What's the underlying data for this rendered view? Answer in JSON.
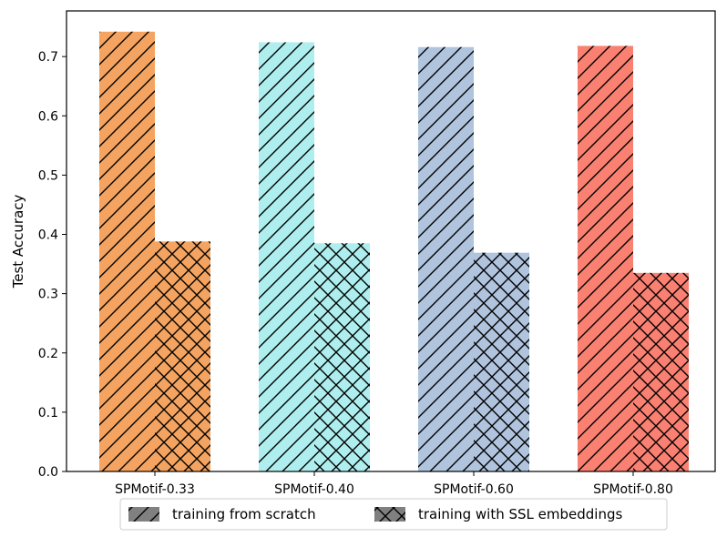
{
  "chart_data": {
    "type": "bar",
    "categories": [
      "SPMotif-0.33",
      "SPMotif-0.40",
      "SPMotif-0.60",
      "SPMotif-0.80"
    ],
    "colors": [
      "#f4a460",
      "#afeeee",
      "#b0c4de",
      "#fa8072"
    ],
    "series": [
      {
        "name": "training from scratch",
        "hatch": "diagonal",
        "values": [
          0.742,
          0.724,
          0.716,
          0.718
        ]
      },
      {
        "name": "training with SSL embeddings",
        "hatch": "crosshatch",
        "values": [
          0.388,
          0.385,
          0.369,
          0.335
        ]
      }
    ],
    "ylabel": "Test Accuracy",
    "xlabel": "",
    "title": "",
    "ylim": [
      0.0,
      0.777
    ],
    "yticks": [
      "0.0",
      "0.1",
      "0.2",
      "0.3",
      "0.4",
      "0.5",
      "0.6",
      "0.7"
    ],
    "grid": false,
    "legend_position": "bottom-center",
    "legend_patch_color": "#808080"
  }
}
